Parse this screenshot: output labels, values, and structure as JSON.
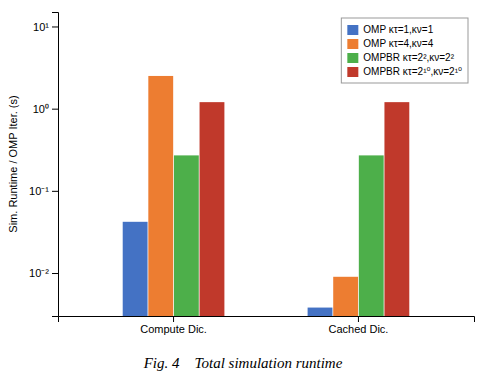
{
  "chart_data": {
    "type": "bar",
    "title": "Fig. 4    Total simulation runtime",
    "ylabel": "Sim. Runtime / OMP Iter. (s)",
    "categories": [
      "Compute Dic.",
      "Cached Dic."
    ],
    "series": [
      {
        "name": "OMP κτ=1,κν=1",
        "color": "#4472C4",
        "values": [
          0.042,
          0.0038
        ]
      },
      {
        "name": "OMP κτ=4,κν=4",
        "color": "#ED7D31",
        "values": [
          2.5,
          0.009
        ]
      },
      {
        "name": "OMPBR κτ=2²,κν=2²",
        "color": "#4DAF4A",
        "values": [
          0.27,
          0.27
        ]
      },
      {
        "name": "OMPBR κτ=2¹⁰,κν=2¹⁰",
        "color": "#C0392B",
        "values": [
          1.2,
          1.2
        ]
      }
    ],
    "log": "y",
    "ylim": [
      0.003,
      15
    ],
    "yticks": [
      {
        "value": 0.01,
        "label": "10⁻²"
      },
      {
        "value": 0.1,
        "label": "10⁻¹"
      },
      {
        "value": 1,
        "label": "10⁰"
      },
      {
        "value": 10,
        "label": "10¹"
      }
    ],
    "grid": false,
    "legend": "upper right"
  }
}
